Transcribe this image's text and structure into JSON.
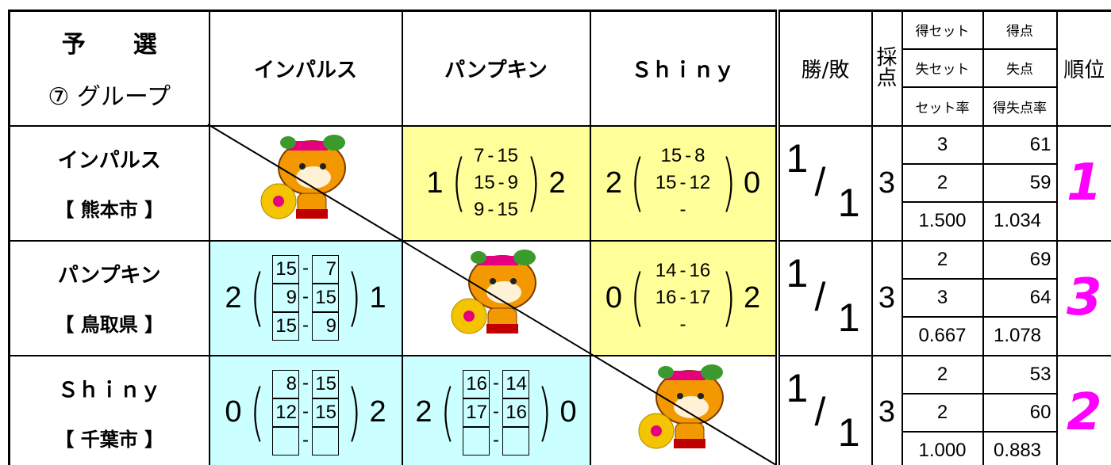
{
  "header": {
    "group_title": "予　　選",
    "group_name": "⑦ グループ",
    "teams": [
      "インパルス",
      "パンプキン",
      "Ｓｈｉｎｙ"
    ],
    "win_loss": "勝/敗",
    "score": "採点",
    "stat_labels": [
      [
        "得セット",
        "得点"
      ],
      [
        "失セット",
        "失点"
      ],
      [
        "セット率",
        "得失点率"
      ]
    ],
    "rank": "順位"
  },
  "rows": [
    {
      "team": "インパルス",
      "city": "【 熊本市 】",
      "results": [
        null,
        {
          "won": "1",
          "lost": "2",
          "color": "#ffff99",
          "boxed": false,
          "games": [
            [
              "7",
              "15"
            ],
            [
              "15",
              "9"
            ],
            [
              "9",
              "15"
            ]
          ]
        },
        {
          "won": "2",
          "lost": "0",
          "color": "#ffff99",
          "boxed": false,
          "games": [
            [
              "15",
              "8"
            ],
            [
              "15",
              "12"
            ],
            [
              null,
              null
            ]
          ]
        }
      ],
      "wins": "1",
      "losses": "1",
      "points": "3",
      "sets": [
        "3",
        "2",
        "1.500"
      ],
      "scores": [
        "61",
        "59",
        "1.034"
      ],
      "rank": "1"
    },
    {
      "team": "パンプキン",
      "city": "【 鳥取県 】",
      "results": [
        {
          "won": "2",
          "lost": "1",
          "color": "#ccffff",
          "boxed": true,
          "games": [
            [
              "15",
              "7"
            ],
            [
              "9",
              "15"
            ],
            [
              "15",
              "9"
            ]
          ]
        },
        null,
        {
          "won": "0",
          "lost": "2",
          "color": "#ffff99",
          "boxed": false,
          "games": [
            [
              "14",
              "16"
            ],
            [
              "16",
              "17"
            ],
            [
              null,
              null
            ]
          ]
        }
      ],
      "wins": "1",
      "losses": "1",
      "points": "3",
      "sets": [
        "2",
        "3",
        "0.667"
      ],
      "scores": [
        "69",
        "64",
        "1.078"
      ],
      "rank": "3"
    },
    {
      "team": "Ｓｈｉｎｙ",
      "city": "【 千葉市 】",
      "results": [
        {
          "won": "0",
          "lost": "2",
          "color": "#ccffff",
          "boxed": true,
          "games": [
            [
              "8",
              "15"
            ],
            [
              "12",
              "15"
            ],
            [
              null,
              null
            ]
          ]
        },
        {
          "won": "2",
          "lost": "0",
          "color": "#ccffff",
          "boxed": true,
          "games": [
            [
              "16",
              "14"
            ],
            [
              "17",
              "16"
            ],
            [
              null,
              null
            ]
          ]
        },
        null
      ],
      "wins": "1",
      "losses": "1",
      "points": "3",
      "sets": [
        "2",
        "2",
        "1.000"
      ],
      "scores": [
        "53",
        "60",
        "0.883"
      ],
      "rank": "2"
    }
  ]
}
